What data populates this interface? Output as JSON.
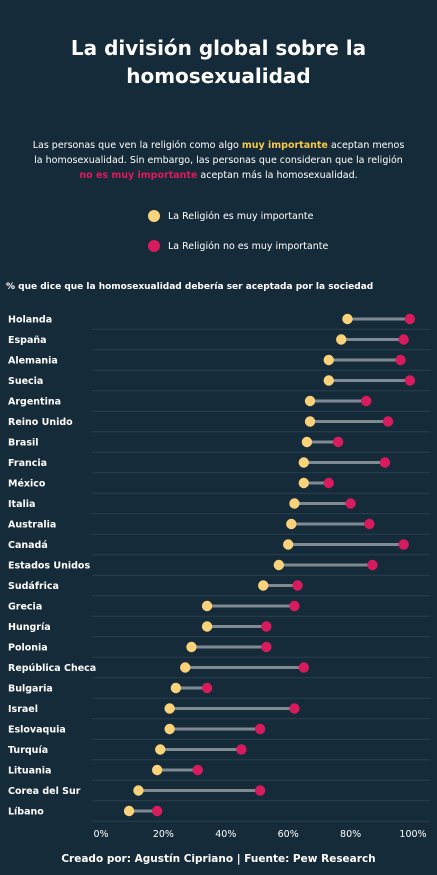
{
  "title": {
    "line1": "La división global sobre la",
    "line2": "homosexualidad"
  },
  "subtitle": {
    "part1": "Las personas que ven la religión como algo ",
    "highlight1": "muy importante",
    "part2": " aceptan menos la homosexualidad. Sin embargo, las personas que consideran que la religión ",
    "highlight2": "no es muy importante",
    "part3": " aceptan más la homosexualidad."
  },
  "legend": {
    "important_label": "La Religión es muy importante",
    "not_important_label": "La Religión no es muy importante"
  },
  "colors": {
    "important": "#f9d27a",
    "not_important": "#d81b5c",
    "connector": "#7f8a93",
    "background": "#162b39",
    "gridline": "#26404f"
  },
  "question": "% que dice que la homosexualidad debería ser aceptada por la sociedad",
  "footer": "Creado por: Agustín Cipriano | Fuente: Pew Research",
  "chart_data": {
    "type": "dumbbell",
    "ylabel": "% que dice que la homosexualidad debería ser aceptada por la sociedad",
    "xlim": [
      0,
      100
    ],
    "x_ticks": [
      "0%",
      "20%",
      "40%",
      "60%",
      "80%",
      "100%"
    ],
    "categories": [
      "Holanda",
      "España",
      "Alemania",
      "Suecia",
      "Argentina",
      "Reino Unido",
      "Brasil",
      "Francia",
      "México",
      "Italia",
      "Australia",
      "Canadá",
      "Estados Unidos",
      "Sudáfrica",
      "Grecia",
      "Hungría",
      "Polonia",
      "República Checa",
      "Bulgaria",
      "Israel",
      "Eslovaquia",
      "Turquía",
      "Lituania",
      "Corea del Sur",
      "Líbano"
    ],
    "series": [
      {
        "name": "La Religión es muy importante",
        "values": [
          79,
          77,
          73,
          73,
          67,
          67,
          66,
          65,
          65,
          62,
          61,
          60,
          57,
          52,
          34,
          34,
          29,
          27,
          24,
          22,
          22,
          19,
          18,
          12,
          9
        ]
      },
      {
        "name": "La Religión no es muy importante",
        "values": [
          99,
          97,
          96,
          99,
          85,
          92,
          76,
          91,
          73,
          80,
          86,
          97,
          87,
          63,
          62,
          53,
          53,
          65,
          34,
          62,
          51,
          45,
          31,
          51,
          18
        ]
      }
    ]
  }
}
